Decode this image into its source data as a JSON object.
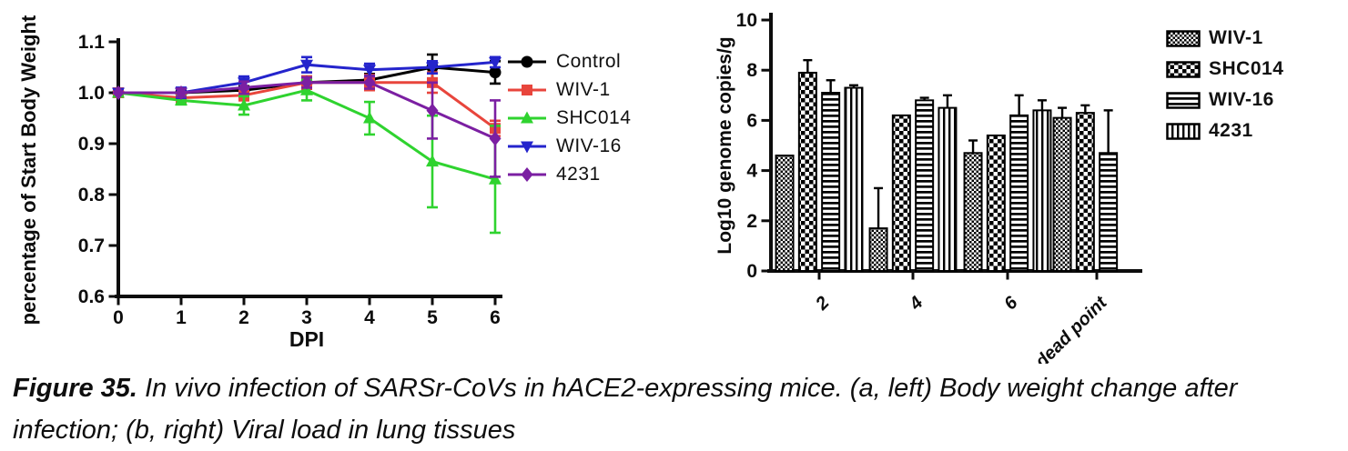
{
  "figure": {
    "caption_label": "Figure 35.",
    "caption_line1": "In vivo infection of SARSr-CoVs in hACE2-expressing mice. (a, left) Body weight change after",
    "caption_line2": "infection; (b, right) Viral load in lung tissues"
  },
  "chart_data": [
    {
      "type": "line",
      "panel": "a",
      "xlabel": "DPI",
      "ylabel": "percentage of Start Body Weight",
      "x": [
        0,
        1,
        2,
        3,
        4,
        5,
        6
      ],
      "xlim": [
        0,
        6
      ],
      "ylim": [
        0.6,
        1.1
      ],
      "yticks": [
        0.6,
        0.7,
        0.8,
        0.9,
        1.0,
        1.1
      ],
      "grid": false,
      "legend_position": "right",
      "series": [
        {
          "name": "Control",
          "color": "#000000",
          "marker": "circle",
          "values": [
            1.0,
            1.0,
            1.005,
            1.02,
            1.025,
            1.05,
            1.04
          ],
          "errors": [
            0,
            0.005,
            0.008,
            0.012,
            0.012,
            0.025,
            0.022
          ]
        },
        {
          "name": "WIV-1",
          "color": "#e8453c",
          "marker": "square",
          "values": [
            1.0,
            0.99,
            0.995,
            1.02,
            1.02,
            1.02,
            0.93
          ],
          "errors": [
            0,
            0.008,
            0.01,
            0.012,
            0.015,
            0.02,
            0.015
          ]
        },
        {
          "name": "SHC014",
          "color": "#2fd32f",
          "marker": "triangle-up",
          "values": [
            1.0,
            0.985,
            0.975,
            1.005,
            0.95,
            0.865,
            0.83
          ],
          "errors": [
            0,
            0.008,
            0.018,
            0.02,
            0.032,
            0.09,
            0.105
          ]
        },
        {
          "name": "WIV-16",
          "color": "#2424cc",
          "marker": "triangle-down",
          "values": [
            1.0,
            1.0,
            1.02,
            1.055,
            1.045,
            1.05,
            1.06
          ],
          "errors": [
            0,
            0.01,
            0.012,
            0.015,
            0.012,
            0.012,
            0.01
          ]
        },
        {
          "name": "4231",
          "color": "#7b1fa2",
          "marker": "diamond",
          "values": [
            1.0,
            1.0,
            1.01,
            1.02,
            1.02,
            0.965,
            0.91
          ],
          "errors": [
            0,
            0.008,
            0.012,
            0.01,
            0.012,
            0.055,
            0.075
          ]
        }
      ]
    },
    {
      "type": "bar",
      "panel": "b",
      "xlabel": "",
      "ylabel": "Log10 genome copies/g",
      "categories": [
        "2",
        "4",
        "6",
        "dead point"
      ],
      "ylim": [
        0,
        10
      ],
      "yticks": [
        0,
        2,
        4,
        6,
        8,
        10
      ],
      "grid": false,
      "bar_fill": "black-white-patterns",
      "legend_position": "right",
      "series": [
        {
          "name": "WIV-1",
          "pattern": "fine-check",
          "values": [
            4.6,
            1.7,
            4.7,
            6.1
          ],
          "errors": [
            0,
            1.6,
            0.5,
            0.4
          ]
        },
        {
          "name": "SHC014",
          "pattern": "checker",
          "values": [
            7.9,
            6.2,
            5.4,
            6.3
          ],
          "errors": [
            0.5,
            0,
            0,
            0.3
          ]
        },
        {
          "name": "WIV-16",
          "pattern": "hlines",
          "values": [
            7.1,
            6.8,
            6.2,
            4.7
          ],
          "errors": [
            0.5,
            0.1,
            0.8,
            1.7
          ]
        },
        {
          "name": "4231",
          "pattern": "vlines",
          "values": [
            7.3,
            6.5,
            6.4,
            null
          ],
          "errors": [
            0.1,
            0.5,
            0.4,
            null
          ]
        }
      ]
    }
  ]
}
